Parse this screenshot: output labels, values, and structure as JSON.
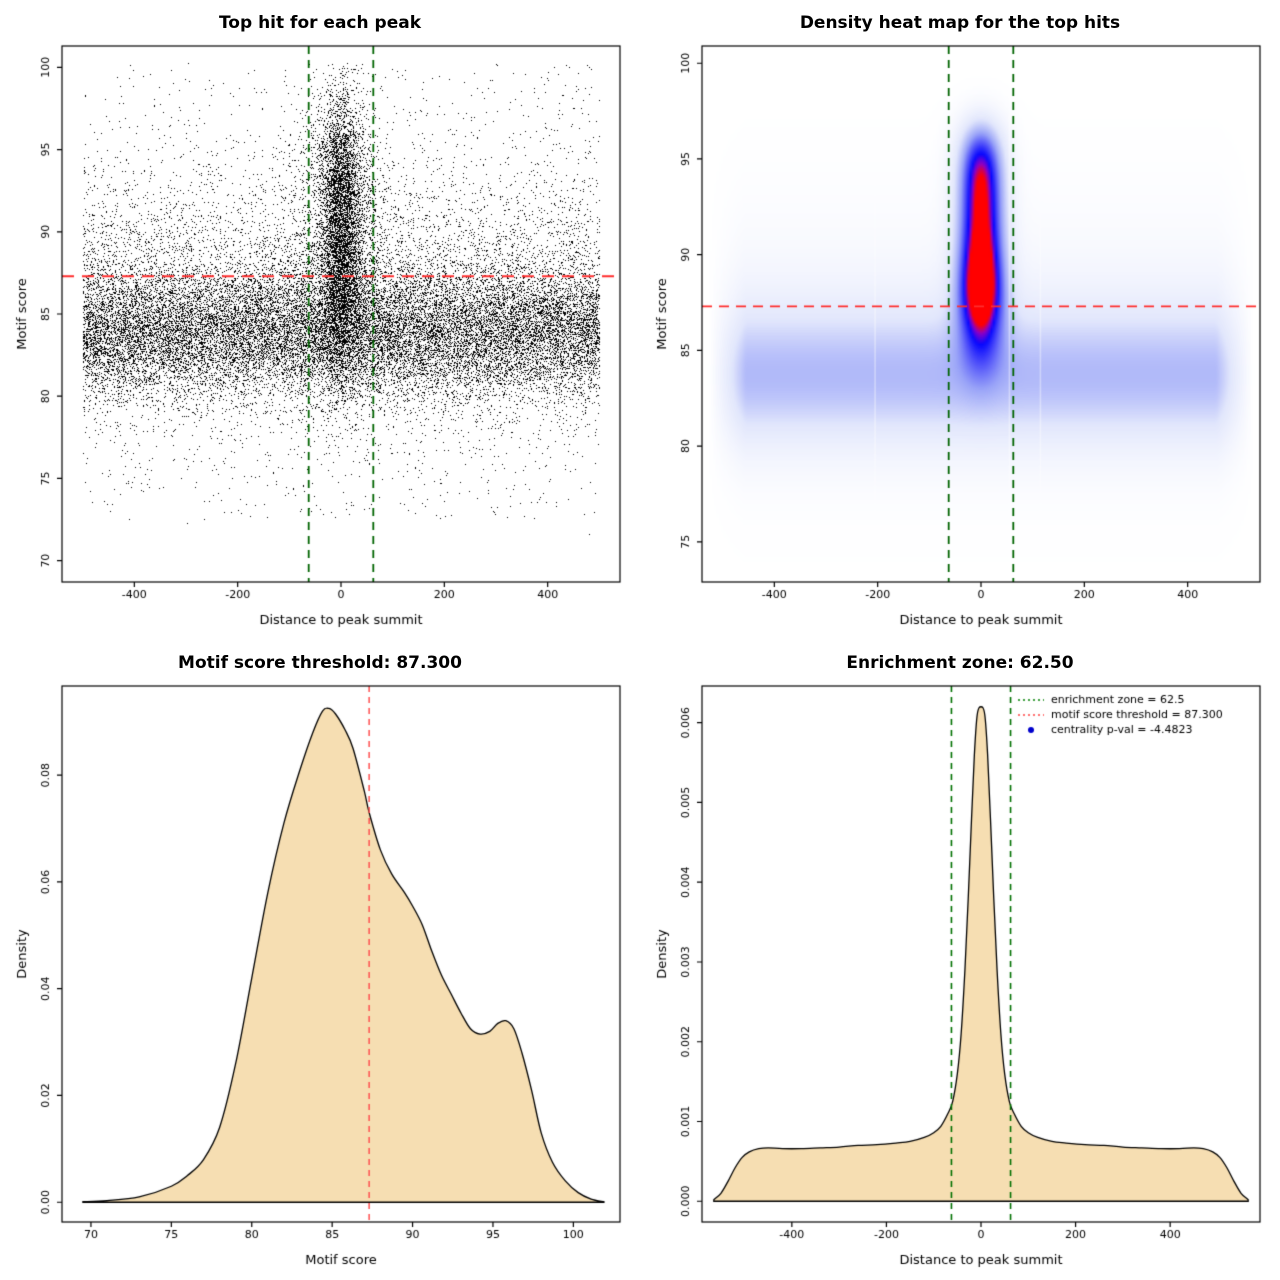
{
  "page": {
    "background": "#ffffff"
  },
  "chart_data": [
    {
      "id": "top-hit-scatter",
      "type": "scatter",
      "title": "Top hit for each peak",
      "xlabel": "Distance to peak summit",
      "ylabel": "Motif score",
      "xlim": [
        -540,
        540
      ],
      "ylim": [
        68.7,
        101.3
      ],
      "xticks": [
        -400,
        -200,
        0,
        200,
        400
      ],
      "xtick_labels": [
        "-400",
        "-200",
        "0",
        "200",
        "400"
      ],
      "yticks": [
        70,
        75,
        80,
        85,
        90,
        95,
        100
      ],
      "ytick_labels": [
        "70",
        "75",
        "80",
        "85",
        "90",
        "95",
        "100"
      ],
      "point_color": "#000000",
      "hline": {
        "y": 87.3,
        "color": "#ff2d2d",
        "dash": [
          12,
          8
        ],
        "width": 2
      },
      "vlines": {
        "x": [
          -62.5,
          62.5
        ],
        "color": "#006400",
        "dash": [
          8,
          6
        ],
        "width": 1.8
      },
      "model": {
        "seed": 20240601,
        "background": {
          "n": 26000,
          "xlo": -500,
          "xhi": 500,
          "ymin": 70.3,
          "ymax": 100.4,
          "normals": [
            {
              "w": 0.7,
              "m": 83.9,
              "s": 2.0
            },
            {
              "w": 0.24,
              "m": 86.3,
              "s": 4.2
            }
          ],
          "uniform": {
            "w": 0.06,
            "lo": 72.5,
            "hi": 100.3
          }
        },
        "center": {
          "n": 7200,
          "ymin": 74.5,
          "ymax": 100.3,
          "x_normals": [
            {
              "w": 0.78,
              "m": 0,
              "s": 20
            },
            {
              "w": 0.22,
              "m": 0,
              "s": 55
            }
          ],
          "y_normals": [
            {
              "w": 0.6,
              "m": 92.2,
              "s": 3.2
            },
            {
              "w": 0.4,
              "m": 86.2,
              "s": 3.0
            }
          ]
        }
      }
    },
    {
      "id": "top-hit-heatmap",
      "type": "heatmap",
      "title": "Density heat map for the top hits",
      "xlabel": "Distance to peak summit",
      "ylabel": "Motif score",
      "xlim": [
        -540,
        540
      ],
      "ylim": [
        72.9,
        100.9
      ],
      "xticks": [
        -400,
        -200,
        0,
        200,
        400
      ],
      "xtick_labels": [
        "-400",
        "-200",
        "0",
        "200",
        "400"
      ],
      "yticks": [
        75,
        80,
        85,
        90,
        95,
        100
      ],
      "ytick_labels": [
        "75",
        "80",
        "85",
        "90",
        "95",
        "100"
      ],
      "hline": {
        "y": 87.3,
        "color": "#ff2d2d",
        "dash": [
          10,
          7
        ],
        "width": 1.8
      },
      "vlines": {
        "x": [
          -62.5,
          62.5
        ],
        "color": "#006400",
        "dash": [
          8,
          6
        ],
        "width": 1.8
      },
      "colormap": [
        [
          0.0,
          "#ffffff"
        ],
        [
          0.18,
          "#e2e7fc"
        ],
        [
          0.35,
          "#9aa4f8"
        ],
        [
          0.5,
          "#4646fa"
        ],
        [
          0.6,
          "#0808ff"
        ],
        [
          0.68,
          "#8c00c8"
        ],
        [
          0.75,
          "#ff0000"
        ],
        [
          1.0,
          "#ff0000"
        ]
      ],
      "streaks": {
        "x": [
          -205,
          55,
          115
        ],
        "alpha": 0.38,
        "width": 1.6
      },
      "model": {
        "fmax": 2.06,
        "band": {
          "amp": 0.62,
          "xfade_start": 455,
          "xfade_len": 70,
          "comps": [
            {
              "m": 83.6,
              "s": 3.4,
              "p": 2,
              "w": 0.75
            },
            {
              "m": 85.5,
              "s": 6.4,
              "p": 2,
              "w": 0.25
            }
          ]
        },
        "core": {
          "amp": 1.6,
          "x": {
            "m": 0,
            "s": 42,
            "p": 2
          },
          "lobes": [
            {
              "m": 91.8,
              "s": 4.8,
              "p": 4,
              "w": 1.0
            },
            {
              "m": 86.8,
              "s": 2.83,
              "p": 2,
              "w": 0.55
            }
          ]
        }
      }
    },
    {
      "id": "motif-score-density",
      "type": "density",
      "title": "Motif score threshold: 87.300",
      "xlabel": "Motif score",
      "ylabel": "Density",
      "xlim": [
        68.2,
        102.9
      ],
      "ylim": [
        -0.0037,
        0.0967
      ],
      "xticks": [
        70,
        75,
        80,
        85,
        90,
        95,
        100
      ],
      "xtick_labels": [
        "70",
        "75",
        "80",
        "85",
        "90",
        "95",
        "100"
      ],
      "yticks": [
        0,
        0.02,
        0.04,
        0.06,
        0.08
      ],
      "ytick_labels": [
        "0.00",
        "0.02",
        "0.04",
        "0.06",
        "0.08"
      ],
      "fill": "#f6deb2",
      "line_color": "#000000",
      "vlines": {
        "x": [
          87.3
        ],
        "color": "#ff5050",
        "dash": [
          6,
          5
        ],
        "width": 1.5
      },
      "x": [
        69.5,
        71,
        73,
        75,
        76,
        77,
        78,
        79,
        80,
        81,
        82,
        83,
        83.8,
        84.4,
        84.8,
        85.2,
        85.8,
        86.3,
        87,
        87.3,
        88,
        88.7,
        89.5,
        90,
        90.6,
        91.2,
        91.8,
        92.4,
        93,
        93.6,
        94.2,
        94.8,
        95.3,
        95.8,
        96.3,
        96.8,
        97.4,
        98,
        98.7,
        99.5,
        100.3,
        101.1,
        101.9
      ],
      "y": [
        0.0001,
        0.0003,
        0.001,
        0.003,
        0.005,
        0.008,
        0.014,
        0.026,
        0.042,
        0.058,
        0.071,
        0.081,
        0.088,
        0.092,
        0.0925,
        0.0915,
        0.0885,
        0.085,
        0.077,
        0.073,
        0.066,
        0.0615,
        0.058,
        0.0555,
        0.052,
        0.047,
        0.0425,
        0.039,
        0.0355,
        0.0325,
        0.0315,
        0.032,
        0.0335,
        0.034,
        0.0325,
        0.028,
        0.021,
        0.013,
        0.0075,
        0.004,
        0.0018,
        0.0006,
        0.0001
      ]
    },
    {
      "id": "enrichment-zone-density",
      "type": "density",
      "title": "Enrichment zone: 62.50",
      "xlabel": "Distance to peak summit",
      "ylabel": "Density",
      "xlim": [
        -590,
        590
      ],
      "ylim": [
        -0.00026,
        0.00646
      ],
      "xticks": [
        -400,
        -200,
        0,
        200,
        400
      ],
      "xtick_labels": [
        "-400",
        "-200",
        "0",
        "200",
        "400"
      ],
      "yticks": [
        0,
        0.001,
        0.002,
        0.003,
        0.004,
        0.005,
        0.006
      ],
      "ytick_labels": [
        "0.000",
        "0.001",
        "0.002",
        "0.003",
        "0.004",
        "0.005",
        "0.006"
      ],
      "fill": "#f6deb2",
      "line_color": "#000000",
      "vlines": {
        "x": [
          -62.5,
          62.5
        ],
        "color": "#007000",
        "dash": [
          6,
          5
        ],
        "width": 1.6
      },
      "x": [
        -565,
        -550,
        -535,
        -520,
        -505,
        -490,
        -470,
        -450,
        -420,
        -380,
        -340,
        -300,
        -260,
        -220,
        -180,
        -150,
        -120,
        -100,
        -85,
        -70,
        -60,
        -50,
        -42,
        -34,
        -27,
        -20,
        -14,
        -8,
        0,
        8,
        14,
        20,
        27,
        34,
        42,
        50,
        60,
        70,
        85,
        100,
        120,
        150,
        180,
        220,
        260,
        300,
        340,
        380,
        420,
        450,
        470,
        490,
        505,
        520,
        535,
        550,
        565
      ],
      "y": [
        2e-05,
        0.0001,
        0.00025,
        0.00042,
        0.00055,
        0.00062,
        0.00066,
        0.00067,
        0.00066,
        0.00066,
        0.00067,
        0.00068,
        0.0007,
        0.00071,
        0.00073,
        0.00075,
        0.0008,
        0.00086,
        0.00094,
        0.0011,
        0.00125,
        0.0016,
        0.0021,
        0.0029,
        0.0038,
        0.0048,
        0.0056,
        0.0061,
        0.0062,
        0.0061,
        0.0056,
        0.0048,
        0.0038,
        0.0029,
        0.0021,
        0.0016,
        0.00125,
        0.0011,
        0.00094,
        0.00086,
        0.0008,
        0.00075,
        0.00073,
        0.00071,
        0.0007,
        0.00068,
        0.00067,
        0.00066,
        0.00066,
        0.00067,
        0.00066,
        0.00062,
        0.00055,
        0.00042,
        0.00025,
        0.0001,
        2e-05
      ],
      "legend": {
        "items": [
          {
            "label": "enrichment zone = 62.5",
            "color": "#008000",
            "symbol": "dotted-line"
          },
          {
            "label": "motif score threshold = 87.300",
            "color": "#ff4040",
            "symbol": "dotted-line"
          },
          {
            "label": "centrality p-val = -4.4823",
            "color": "#0000cd",
            "symbol": "point"
          }
        ]
      }
    }
  ]
}
